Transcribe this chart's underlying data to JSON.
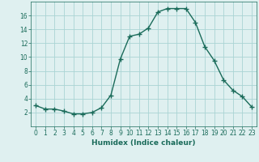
{
  "x": [
    0,
    1,
    2,
    3,
    4,
    5,
    6,
    7,
    8,
    9,
    10,
    11,
    12,
    13,
    14,
    15,
    16,
    17,
    18,
    19,
    20,
    21,
    22,
    23
  ],
  "y": [
    3.0,
    2.5,
    2.5,
    2.2,
    1.8,
    1.8,
    2.0,
    2.7,
    4.5,
    9.7,
    13.0,
    13.3,
    14.2,
    16.5,
    17.0,
    17.0,
    17.0,
    15.0,
    11.5,
    9.5,
    6.7,
    5.2,
    4.3,
    2.8
  ],
  "line_color": "#1a6b5a",
  "marker": "+",
  "markersize": 4,
  "linewidth": 1.0,
  "bg_color": "#dff0f0",
  "grid_color": "#aad4d4",
  "xlabel": "Humidex (Indice chaleur)",
  "xlim": [
    -0.5,
    23.5
  ],
  "ylim": [
    0,
    18
  ],
  "yticks": [
    2,
    4,
    6,
    8,
    10,
    12,
    14,
    16
  ],
  "xticks": [
    0,
    1,
    2,
    3,
    4,
    5,
    6,
    7,
    8,
    9,
    10,
    11,
    12,
    13,
    14,
    15,
    16,
    17,
    18,
    19,
    20,
    21,
    22,
    23
  ],
  "tick_color": "#1a6b5a",
  "label_fontsize": 6.5,
  "tick_fontsize": 5.5
}
